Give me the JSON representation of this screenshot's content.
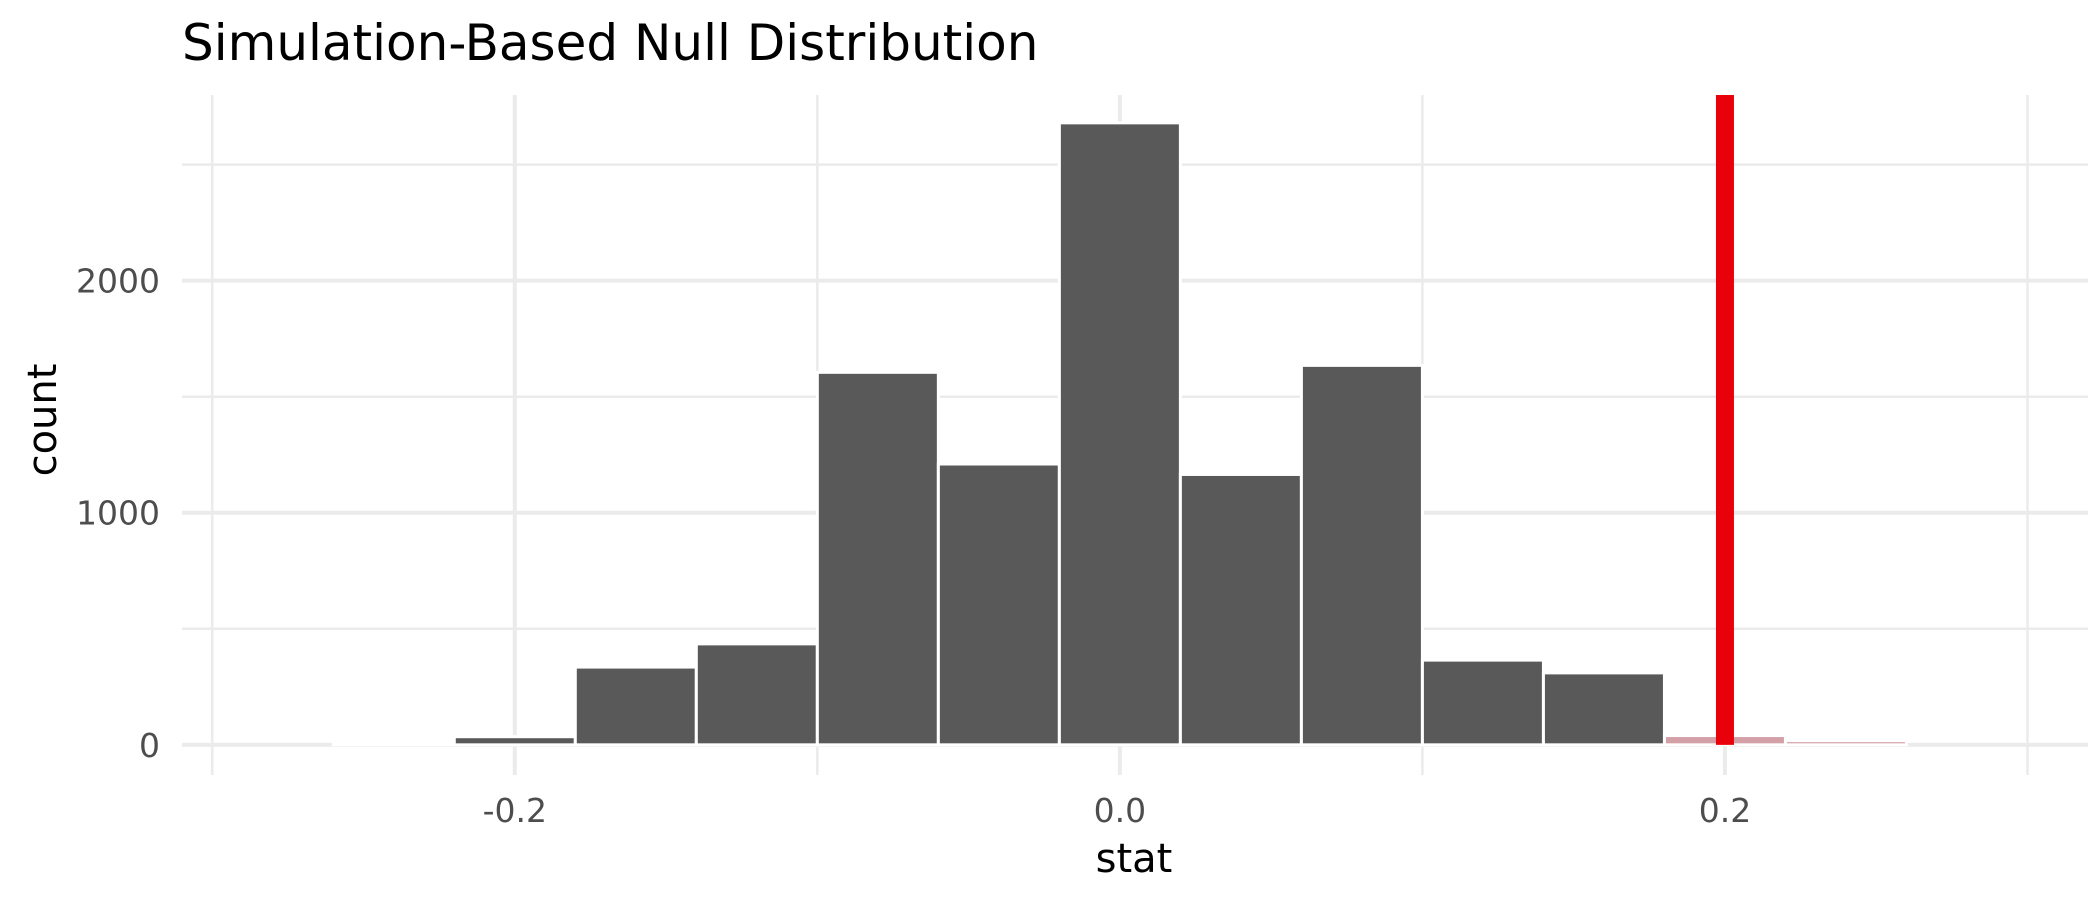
{
  "chart_data": {
    "type": "bar",
    "subtype": "histogram",
    "title": "Simulation-Based Null Distribution",
    "xlabel": "stat",
    "ylabel": "count",
    "xlim": [
      -0.31,
      0.32
    ],
    "ylim": [
      -130,
      2800
    ],
    "x_ticks": [
      -0.2,
      0.0,
      0.2
    ],
    "x_tick_labels": [
      "-0.2",
      "0.0",
      "0.2"
    ],
    "x_minor_ticks": [
      -0.3,
      -0.1,
      0.1,
      0.3
    ],
    "y_ticks": [
      0,
      1000,
      2000
    ],
    "y_tick_labels": [
      "0",
      "1000",
      "2000"
    ],
    "y_minor_ticks": [
      500,
      1500,
      2500
    ],
    "grid": true,
    "bar_color": "#595959",
    "shade_color": "#d4a0a8",
    "bins": [
      {
        "x0": -0.26,
        "x1": -0.22,
        "count": 8,
        "shaded": false
      },
      {
        "x0": -0.22,
        "x1": -0.18,
        "count": 35,
        "shaded": false
      },
      {
        "x0": -0.18,
        "x1": -0.14,
        "count": 335,
        "shaded": false
      },
      {
        "x0": -0.14,
        "x1": -0.1,
        "count": 435,
        "shaded": false
      },
      {
        "x0": -0.1,
        "x1": -0.06,
        "count": 1605,
        "shaded": false
      },
      {
        "x0": -0.06,
        "x1": -0.02,
        "count": 1210,
        "shaded": false
      },
      {
        "x0": -0.02,
        "x1": 0.02,
        "count": 2680,
        "shaded": false
      },
      {
        "x0": 0.02,
        "x1": 0.06,
        "count": 1165,
        "shaded": false
      },
      {
        "x0": 0.06,
        "x1": 0.1,
        "count": 1635,
        "shaded": false
      },
      {
        "x0": 0.1,
        "x1": 0.14,
        "count": 365,
        "shaded": false
      },
      {
        "x0": 0.14,
        "x1": 0.18,
        "count": 310,
        "shaded": false
      },
      {
        "x0": 0.18,
        "x1": 0.22,
        "count": 40,
        "shaded": true
      },
      {
        "x0": 0.22,
        "x1": 0.26,
        "count": 18,
        "shaded": true
      }
    ],
    "observed_stat": 0.2,
    "observed_line_color": "#e8000b"
  }
}
